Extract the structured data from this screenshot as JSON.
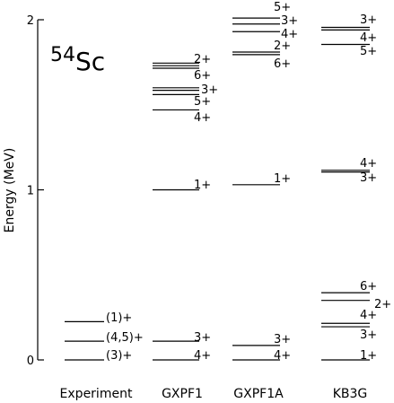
{
  "chart_data": {
    "type": "level-scheme",
    "ylabel": "Energy (MeV)",
    "ylim": [
      0,
      2
    ],
    "yticks": [
      {
        "value": 0,
        "label": "0"
      },
      {
        "value": 1,
        "label": "1"
      },
      {
        "value": 2,
        "label": "2"
      }
    ],
    "nucleus": {
      "mass": "54",
      "symbol": "Sc"
    },
    "columns": [
      {
        "name": "Experiment",
        "levels": [
          {
            "energy": 0.0,
            "label": "(3)+"
          },
          {
            "energy": 0.11,
            "label": "(4,5)+"
          },
          {
            "energy": 0.225,
            "label": "(1)+"
          }
        ]
      },
      {
        "name": "GXPF1",
        "levels": [
          {
            "energy": 0.0,
            "label": "4+"
          },
          {
            "energy": 0.11,
            "label": "3+"
          },
          {
            "energy": 1.0,
            "label": "1+"
          },
          {
            "energy": 1.47,
            "label": "4+"
          },
          {
            "energy": 1.56,
            "label": "5+"
          },
          {
            "energy": 1.585,
            "label": "3+"
          },
          {
            "energy": 1.6,
            "label": ""
          },
          {
            "energy": 1.715,
            "label": "6+"
          },
          {
            "energy": 1.73,
            "label": ""
          },
          {
            "energy": 1.745,
            "label": "2+"
          }
        ]
      },
      {
        "name": "GXPF1A",
        "levels": [
          {
            "energy": 0.0,
            "label": "4+"
          },
          {
            "energy": 0.085,
            "label": "3+"
          },
          {
            "energy": 1.03,
            "label": "1+"
          },
          {
            "energy": 1.795,
            "label": "6+"
          },
          {
            "energy": 1.81,
            "label": "2+"
          },
          {
            "energy": 1.93,
            "label": "4+"
          },
          {
            "energy": 1.975,
            "label": "3+"
          },
          {
            "energy": 2.01,
            "label": "5+"
          }
        ]
      },
      {
        "name": "KB3G",
        "levels": [
          {
            "energy": 0.0,
            "label": "1+"
          },
          {
            "energy": 0.195,
            "label": "3+"
          },
          {
            "energy": 0.215,
            "label": "4+"
          },
          {
            "energy": 0.35,
            "label": "2+"
          },
          {
            "energy": 0.395,
            "label": "6+"
          },
          {
            "energy": 1.105,
            "label": "4+"
          },
          {
            "energy": 1.115,
            "label": "3+"
          },
          {
            "energy": 1.855,
            "label": "5+"
          },
          {
            "energy": 1.94,
            "label": "4+"
          },
          {
            "energy": 1.955,
            "label": "3+"
          }
        ]
      }
    ]
  }
}
